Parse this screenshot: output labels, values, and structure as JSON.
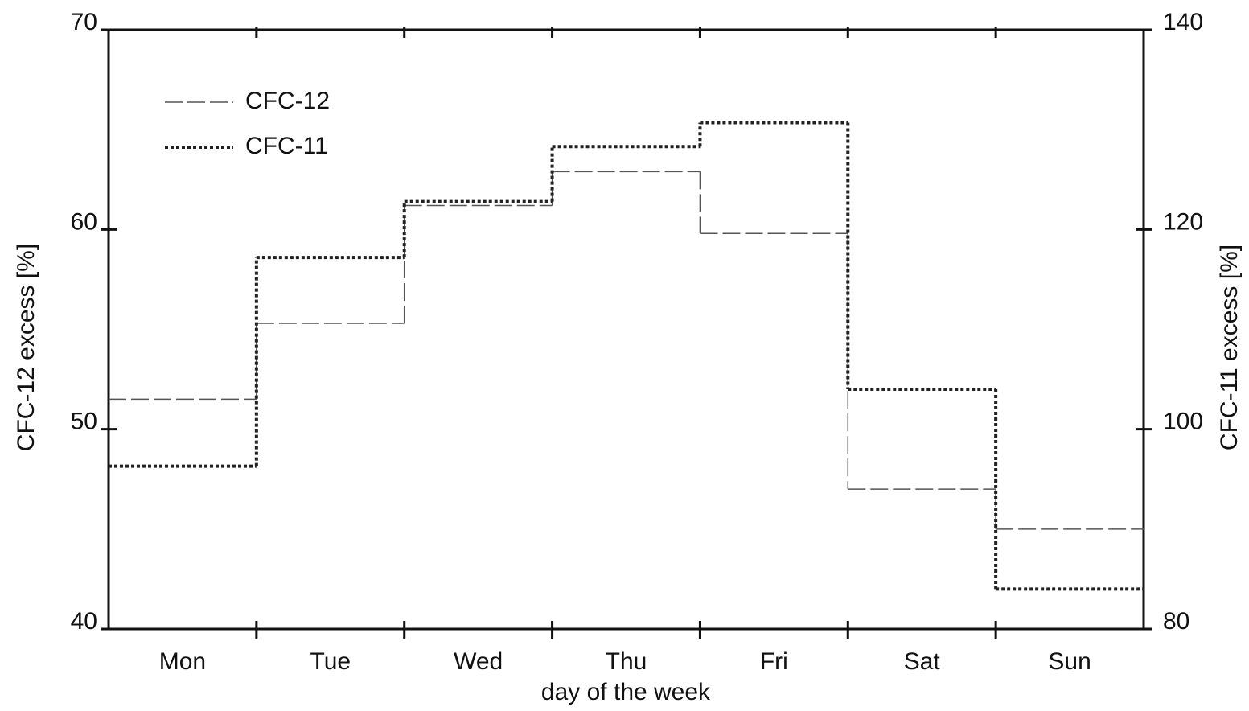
{
  "chart_data": {
    "type": "step",
    "x_label": "day of the week",
    "y_label": "CFC-12  excess [%]",
    "y2_label": "CFC-11 excess [%]",
    "categories": [
      "Mon",
      "Tue",
      "Wed",
      "Thu",
      "Fri",
      "Sat",
      "Sun"
    ],
    "series": [
      {
        "name": "CFC-12",
        "color": "#555555",
        "values": [
          51.5,
          55.3,
          61.2,
          62.9,
          59.8,
          47.0,
          45.0
        ]
      },
      {
        "name": "CFC-11",
        "color": "#222222",
        "axis": "y2",
        "values": [
          96.3,
          117.2,
          122.8,
          128.3,
          130.7,
          104.0,
          84.0
        ]
      }
    ],
    "ylim": [
      40,
      70
    ],
    "yticks": [
      40,
      50,
      60,
      70
    ],
    "y2lim": [
      80,
      140
    ],
    "y2ticks": [
      80,
      100,
      120,
      140
    ],
    "grid": false,
    "legend": "upper left"
  }
}
